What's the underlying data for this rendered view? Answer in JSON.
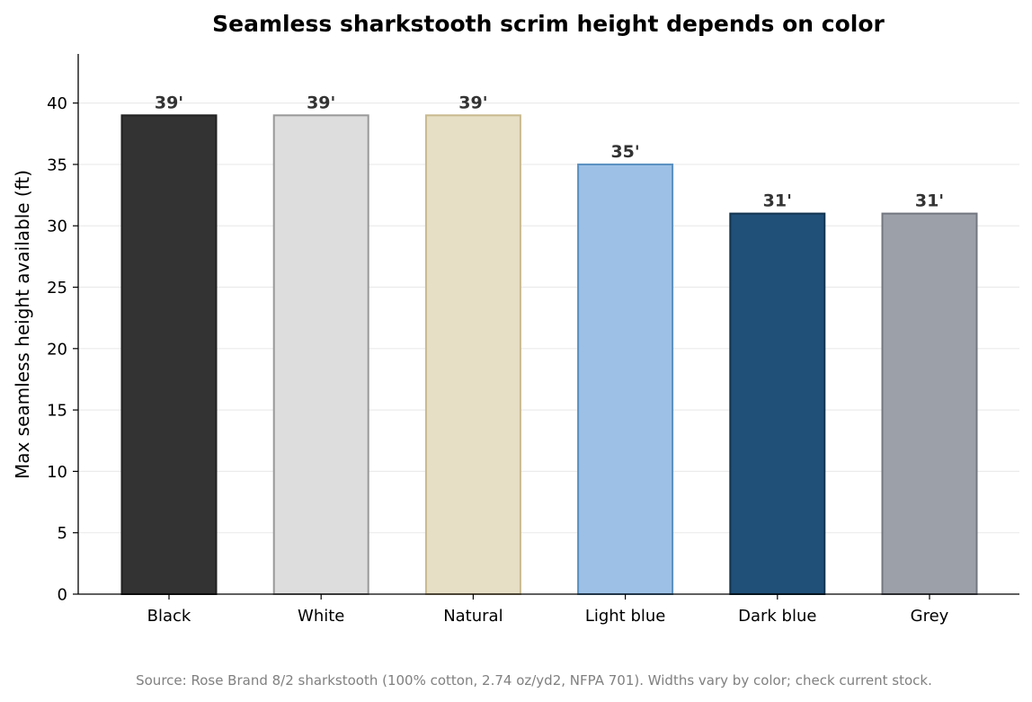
{
  "chart_data": {
    "type": "bar",
    "title": "Seamless sharkstooth scrim height depends on color",
    "xlabel": "",
    "ylabel": "Max seamless height available (ft)",
    "categories": [
      "Black",
      "White",
      "Natural",
      "Light blue",
      "Dark blue",
      "Grey"
    ],
    "values": [
      39,
      39,
      39,
      35,
      31,
      31
    ],
    "data_labels": [
      "39'",
      "39'",
      "39'",
      "35'",
      "31'",
      "31'"
    ],
    "ylim": [
      0,
      44
    ],
    "yticks": [
      "0",
      "5",
      "10",
      "15",
      "20",
      "25",
      "30",
      "35",
      "40"
    ],
    "grid": "horizontal",
    "bar_colors": [
      "#333333",
      "#dddddd",
      "#e6dec5",
      "#9dc1e6",
      "#204f78",
      "#9ca0a8"
    ],
    "bar_edge_colors": [
      "#222222",
      "#999999",
      "#c8b98f",
      "#5a8fbf",
      "#12344f",
      "#737780"
    ],
    "source": "Source: Rose Brand 8/2 sharkstooth (100% cotton, 2.74 oz/yd2, NFPA 701). Widths vary by color; check current stock."
  }
}
